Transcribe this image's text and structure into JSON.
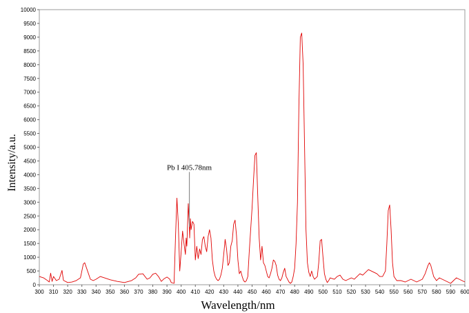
{
  "chart_data": {
    "type": "line",
    "title": "",
    "xlabel": "Wavelength/nm",
    "ylabel": "Intensity/a.u.",
    "xlim": [
      300,
      600
    ],
    "ylim": [
      0,
      10000
    ],
    "x_ticks": [
      300,
      310,
      320,
      330,
      340,
      350,
      360,
      370,
      380,
      390,
      400,
      410,
      420,
      430,
      440,
      450,
      460,
      470,
      480,
      490,
      500,
      510,
      520,
      530,
      540,
      550,
      560,
      570,
      580,
      590,
      600
    ],
    "y_ticks": [
      0,
      500,
      1000,
      1500,
      2000,
      2500,
      3000,
      3500,
      4000,
      4500,
      5000,
      5500,
      6000,
      6500,
      7000,
      7500,
      8000,
      8500,
      9000,
      9500,
      10000
    ],
    "grid": false,
    "line_color": "#e00000",
    "annotation": {
      "label": "Pb I 405.78nm",
      "x": 405.78,
      "y_top": 4100,
      "y_bottom": 2100
    },
    "series": [
      {
        "name": "",
        "points": [
          [
            300,
            300
          ],
          [
            303,
            250
          ],
          [
            305,
            180
          ],
          [
            307,
            100
          ],
          [
            308,
            420
          ],
          [
            309,
            120
          ],
          [
            310,
            300
          ],
          [
            312,
            150
          ],
          [
            314,
            200
          ],
          [
            316,
            520
          ],
          [
            317,
            160
          ],
          [
            320,
            80
          ],
          [
            323,
            100
          ],
          [
            326,
            150
          ],
          [
            329,
            250
          ],
          [
            331,
            750
          ],
          [
            332,
            800
          ],
          [
            334,
            500
          ],
          [
            336,
            200
          ],
          [
            338,
            150
          ],
          [
            340,
            200
          ],
          [
            343,
            300
          ],
          [
            346,
            250
          ],
          [
            350,
            180
          ],
          [
            355,
            120
          ],
          [
            360,
            80
          ],
          [
            365,
            150
          ],
          [
            368,
            250
          ],
          [
            370,
            380
          ],
          [
            373,
            400
          ],
          [
            376,
            200
          ],
          [
            378,
            250
          ],
          [
            380,
            380
          ],
          [
            382,
            420
          ],
          [
            384,
            300
          ],
          [
            386,
            120
          ],
          [
            388,
            220
          ],
          [
            390,
            280
          ],
          [
            392,
            200
          ],
          [
            393,
            80
          ],
          [
            395,
            50
          ],
          [
            396,
            1700
          ],
          [
            397,
            3150
          ],
          [
            398,
            2200
          ],
          [
            399,
            500
          ],
          [
            400,
            1200
          ],
          [
            401,
            1950
          ],
          [
            402,
            1500
          ],
          [
            403,
            1100
          ],
          [
            403.5,
            1700
          ],
          [
            404,
            1400
          ],
          [
            405,
            2950
          ],
          [
            405.8,
            2100
          ],
          [
            406,
            1700
          ],
          [
            406.5,
            2400
          ],
          [
            407,
            2000
          ],
          [
            408,
            2300
          ],
          [
            409,
            2200
          ],
          [
            410,
            900
          ],
          [
            411,
            1400
          ],
          [
            412,
            950
          ],
          [
            413,
            1300
          ],
          [
            414,
            1100
          ],
          [
            415,
            1650
          ],
          [
            416,
            1750
          ],
          [
            417,
            1400
          ],
          [
            418,
            1200
          ],
          [
            419,
            1750
          ],
          [
            420,
            2000
          ],
          [
            421,
            1700
          ],
          [
            422,
            900
          ],
          [
            423,
            500
          ],
          [
            424,
            300
          ],
          [
            425,
            200
          ],
          [
            426,
            150
          ],
          [
            427,
            200
          ],
          [
            428,
            350
          ],
          [
            429,
            600
          ],
          [
            430,
            1100
          ],
          [
            431,
            1650
          ],
          [
            432,
            1300
          ],
          [
            433,
            700
          ],
          [
            434,
            800
          ],
          [
            435,
            1400
          ],
          [
            436,
            1600
          ],
          [
            437,
            2200
          ],
          [
            438,
            2350
          ],
          [
            439,
            1800
          ],
          [
            440,
            900
          ],
          [
            441,
            400
          ],
          [
            442,
            500
          ],
          [
            443,
            300
          ],
          [
            444,
            150
          ],
          [
            445,
            100
          ],
          [
            446,
            150
          ],
          [
            447,
            300
          ],
          [
            448,
            1200
          ],
          [
            449,
            2000
          ],
          [
            450,
            2800
          ],
          [
            451,
            3800
          ],
          [
            452,
            4700
          ],
          [
            453,
            4800
          ],
          [
            454,
            3200
          ],
          [
            455,
            1700
          ],
          [
            456,
            900
          ],
          [
            457,
            1400
          ],
          [
            458,
            800
          ],
          [
            459,
            700
          ],
          [
            460,
            500
          ],
          [
            461,
            300
          ],
          [
            462,
            250
          ],
          [
            463,
            400
          ],
          [
            464,
            600
          ],
          [
            465,
            900
          ],
          [
            466,
            850
          ],
          [
            467,
            700
          ],
          [
            468,
            350
          ],
          [
            469,
            200
          ],
          [
            470,
            150
          ],
          [
            471,
            250
          ],
          [
            472,
            450
          ],
          [
            473,
            600
          ],
          [
            474,
            300
          ],
          [
            475,
            200
          ],
          [
            476,
            100
          ],
          [
            477,
            50
          ],
          [
            478,
            100
          ],
          [
            479,
            300
          ],
          [
            480,
            600
          ],
          [
            481,
            1500
          ],
          [
            482,
            3000
          ],
          [
            483,
            6500
          ],
          [
            484,
            9000
          ],
          [
            485,
            9150
          ],
          [
            486,
            8000
          ],
          [
            487,
            5000
          ],
          [
            488,
            2000
          ],
          [
            489,
            800
          ],
          [
            490,
            450
          ],
          [
            491,
            300
          ],
          [
            492,
            500
          ],
          [
            493,
            300
          ],
          [
            494,
            200
          ],
          [
            495,
            250
          ],
          [
            496,
            300
          ],
          [
            497,
            800
          ],
          [
            498,
            1600
          ],
          [
            499,
            1650
          ],
          [
            500,
            1000
          ],
          [
            501,
            400
          ],
          [
            502,
            200
          ],
          [
            503,
            80
          ],
          [
            504,
            150
          ],
          [
            505,
            250
          ],
          [
            508,
            200
          ],
          [
            510,
            300
          ],
          [
            512,
            350
          ],
          [
            514,
            200
          ],
          [
            516,
            150
          ],
          [
            518,
            200
          ],
          [
            520,
            250
          ],
          [
            522,
            200
          ],
          [
            524,
            300
          ],
          [
            526,
            400
          ],
          [
            528,
            350
          ],
          [
            530,
            450
          ],
          [
            532,
            550
          ],
          [
            534,
            500
          ],
          [
            536,
            450
          ],
          [
            538,
            400
          ],
          [
            540,
            300
          ],
          [
            542,
            300
          ],
          [
            544,
            500
          ],
          [
            545,
            1500
          ],
          [
            546,
            2700
          ],
          [
            547,
            2900
          ],
          [
            548,
            2000
          ],
          [
            549,
            800
          ],
          [
            550,
            300
          ],
          [
            552,
            150
          ],
          [
            555,
            150
          ],
          [
            558,
            100
          ],
          [
            560,
            150
          ],
          [
            562,
            200
          ],
          [
            564,
            150
          ],
          [
            566,
            100
          ],
          [
            568,
            150
          ],
          [
            570,
            200
          ],
          [
            572,
            400
          ],
          [
            574,
            700
          ],
          [
            575,
            800
          ],
          [
            576,
            700
          ],
          [
            577,
            500
          ],
          [
            578,
            300
          ],
          [
            580,
            150
          ],
          [
            582,
            250
          ],
          [
            584,
            200
          ],
          [
            586,
            150
          ],
          [
            588,
            100
          ],
          [
            590,
            50
          ],
          [
            592,
            150
          ],
          [
            594,
            250
          ],
          [
            596,
            200
          ],
          [
            598,
            150
          ],
          [
            600,
            100
          ]
        ]
      }
    ]
  }
}
